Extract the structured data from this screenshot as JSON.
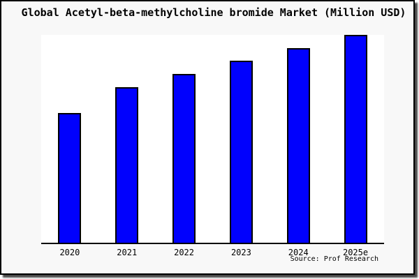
{
  "chart_data": {
    "type": "bar",
    "title": "Global Acetyl-beta-methylcholine bromide Market (Million USD)",
    "categories": [
      "2020",
      "2021",
      "2022",
      "2023",
      "2024",
      "2025e"
    ],
    "values_pct_of_max": [
      62.5,
      74.9,
      81.3,
      87.6,
      93.7,
      100
    ],
    "xlabel": "",
    "ylabel": "",
    "y_axis": "unlabeled (no ticks, no gridlines)",
    "grid": false,
    "legend": "none",
    "bar_color": "#0101fd",
    "bar_edge_color": "#000000",
    "figure_background": "#f8f8f8",
    "plot_background": "#ffffff",
    "source": "Source: Prof Research"
  }
}
